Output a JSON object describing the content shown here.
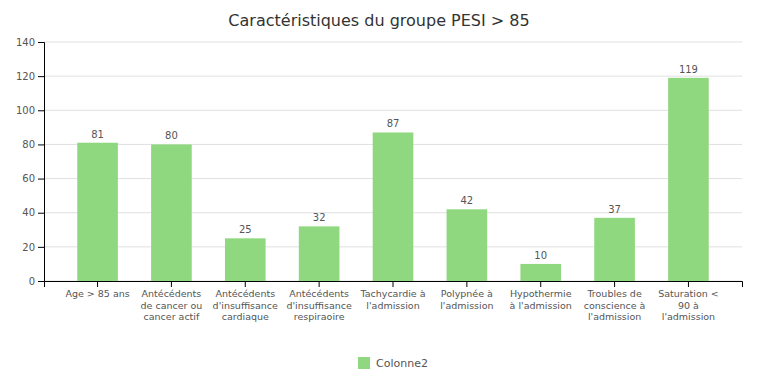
{
  "chart_data": {
    "type": "bar",
    "title": "Caractéristiques du groupe PESI > 85",
    "categories": [
      "Age > 85 ans",
      "Antécédents\nde cancer ou\ncancer actif",
      "Antécédents\nd'insuffisance\ncardiaque",
      "Antécédents\nd'insuffisance\nrespiraoire",
      "Tachycardie à\nl'admission",
      "Polypnée à\nl'admission",
      "Hypothermie\nà l'admission",
      "Troubles de\nconscience à\nl'admission",
      "Saturation <\n90 à\nl'admission"
    ],
    "series": [
      {
        "name": "Colonne2",
        "color": "#90d880",
        "values": [
          81,
          80,
          25,
          32,
          87,
          42,
          10,
          37,
          119
        ]
      }
    ],
    "ylim": [
      0,
      140
    ],
    "yticks": [
      0,
      20,
      40,
      60,
      80,
      100,
      120,
      140
    ],
    "grid": true,
    "data_labels": true,
    "legend": "bottom"
  }
}
